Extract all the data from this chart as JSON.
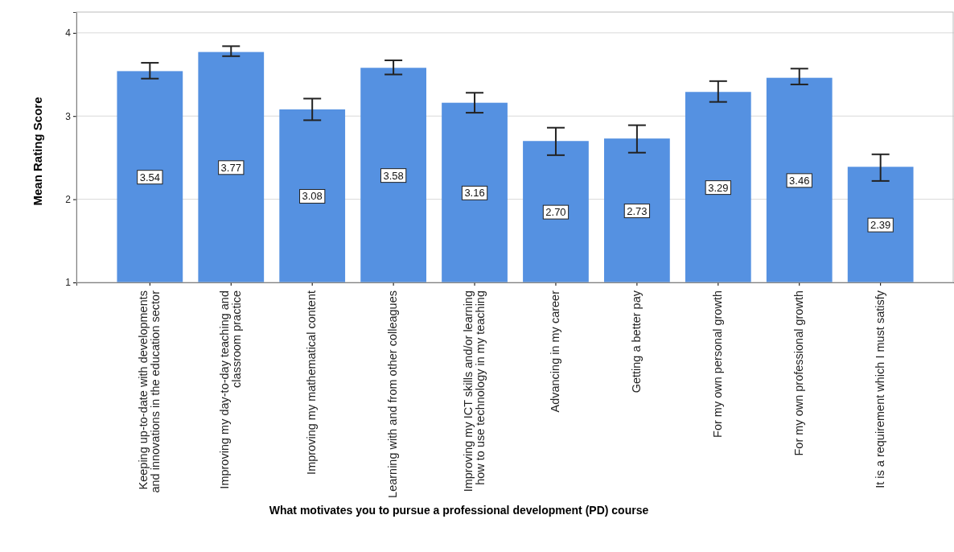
{
  "chart_data": {
    "type": "bar",
    "xlabel": "What motivates you to pursue a professional development (PD) course",
    "ylabel": "Mean Rating Score",
    "categories": [
      "Keeping up-to-date with developments and innovations in the education sector",
      "Improving my day-to-day teaching and classroom practice",
      "Improving my mathematical content",
      "Learning with and from other colleagues",
      "Improving my ICT skills and/or learning how to use technology in my teaching",
      "Advancing in my career",
      "Getting a better pay",
      "For my own personal growth",
      "For my own professional growth",
      "It is a requirement which I must satisfy"
    ],
    "values": [
      3.54,
      3.77,
      3.08,
      3.58,
      3.16,
      2.7,
      2.73,
      3.29,
      3.46,
      2.39
    ],
    "value_labels": [
      "3.54",
      "3.77",
      "3.08",
      "3.58",
      "3.16",
      "2.70",
      "2.73",
      "3.29",
      "3.46",
      "2.39"
    ],
    "errors": [
      [
        3.45,
        3.64
      ],
      [
        3.72,
        3.84
      ],
      [
        2.95,
        3.21
      ],
      [
        3.5,
        3.67
      ],
      [
        3.04,
        3.28
      ],
      [
        2.53,
        2.86
      ],
      [
        2.56,
        2.89
      ],
      [
        3.17,
        3.42
      ],
      [
        3.38,
        3.57
      ],
      [
        2.22,
        2.54
      ]
    ],
    "color": "#5591e1",
    "ylim": [
      1,
      4.25
    ],
    "yticks": [
      1,
      2,
      3,
      4
    ],
    "grid": "y"
  }
}
